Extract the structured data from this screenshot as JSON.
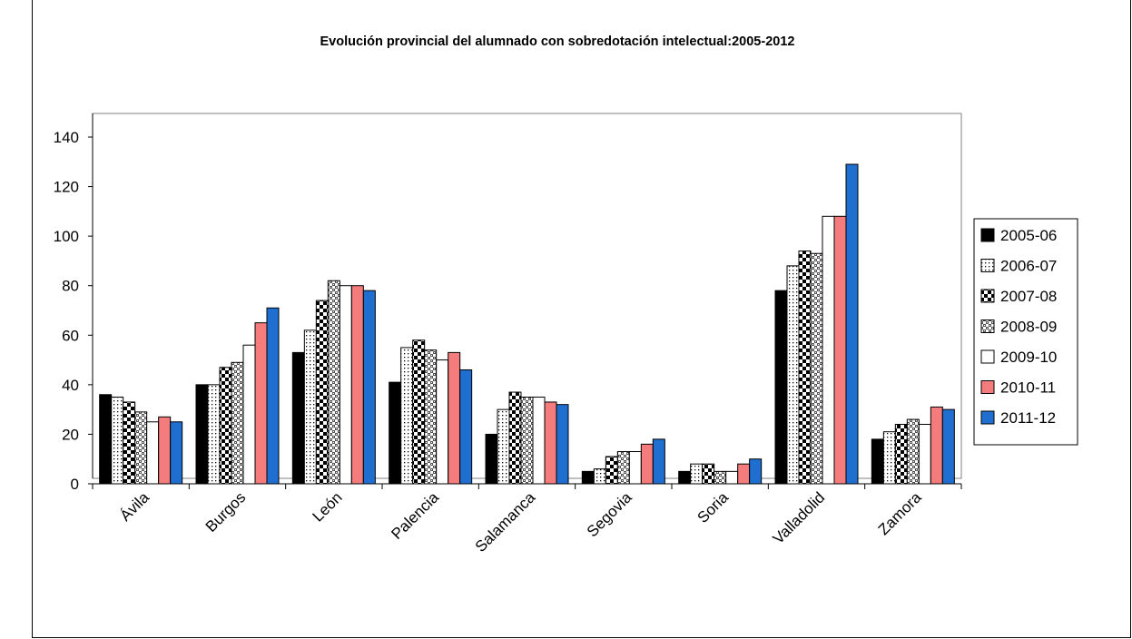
{
  "chart_data": {
    "type": "bar",
    "title": "Evolución provincial del alumnado con sobredotación intelectual:2005-2012",
    "xlabel": "",
    "ylabel": "",
    "ylim": [
      0,
      140
    ],
    "yticks": [
      0,
      20,
      40,
      60,
      80,
      100,
      120,
      140
    ],
    "grid": false,
    "legend_position": "right",
    "categories": [
      "Ávila",
      "Burgos",
      "León",
      "Palencia",
      "Salamanca",
      "Segovia",
      "Soria",
      "Valladolid",
      "Zamora"
    ],
    "series": [
      {
        "name": "2005-06",
        "pattern": "solid",
        "color": "#000000",
        "values": [
          36,
          40,
          53,
          41,
          20,
          5,
          5,
          78,
          18
        ]
      },
      {
        "name": "2006-07",
        "pattern": "dots",
        "color": "#ffffff",
        "values": [
          35,
          40,
          62,
          55,
          30,
          6,
          8,
          88,
          21
        ]
      },
      {
        "name": "2007-08",
        "pattern": "checker",
        "color": "#000000",
        "values": [
          33,
          47,
          74,
          58,
          37,
          11,
          8,
          94,
          24
        ]
      },
      {
        "name": "2008-09",
        "pattern": "dotgrid",
        "color": "#888888",
        "values": [
          29,
          49,
          82,
          54,
          35,
          13,
          5,
          93,
          26
        ]
      },
      {
        "name": "2009-10",
        "pattern": "plain",
        "color": "#ffffff",
        "values": [
          25,
          56,
          80,
          50,
          35,
          13,
          5,
          108,
          24
        ]
      },
      {
        "name": "2010-11",
        "pattern": "solid",
        "color": "#f47c7c",
        "values": [
          27,
          65,
          80,
          53,
          33,
          16,
          8,
          108,
          31
        ]
      },
      {
        "name": "2011-12",
        "pattern": "solid",
        "color": "#1f6fd1",
        "values": [
          25,
          71,
          78,
          46,
          32,
          18,
          10,
          129,
          30
        ]
      }
    ]
  }
}
